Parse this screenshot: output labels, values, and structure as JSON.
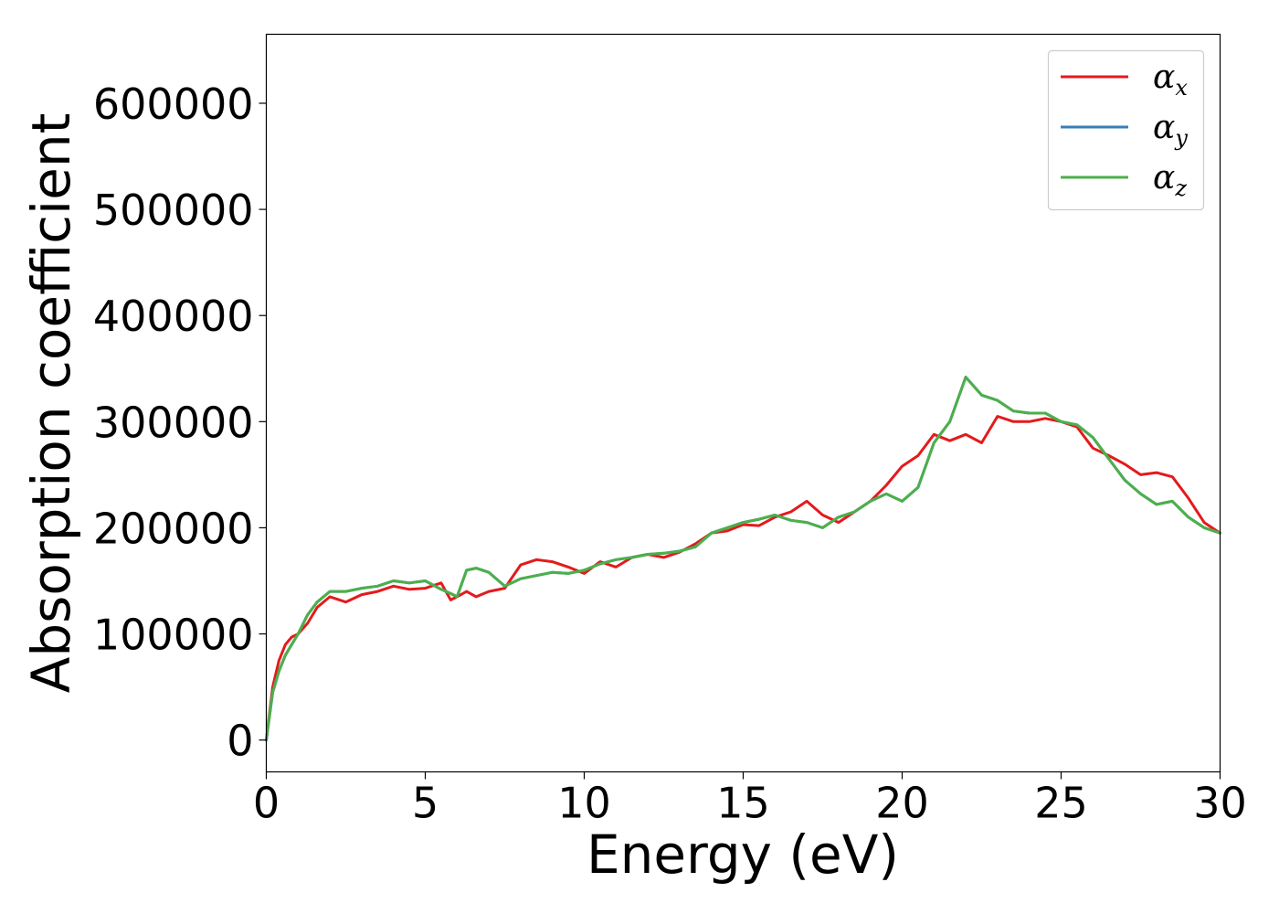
{
  "chart_data": {
    "type": "line",
    "xlabel": "Energy (eV)",
    "ylabel": "Absorption coefficient",
    "xlim": [
      0,
      30
    ],
    "ylim": [
      -30000,
      665000
    ],
    "xticks": [
      0,
      5,
      10,
      15,
      20,
      25,
      30
    ],
    "xtick_labels": [
      "0",
      "5",
      "10",
      "15",
      "20",
      "25",
      "30"
    ],
    "yticks": [
      0,
      100000,
      200000,
      300000,
      400000,
      500000,
      600000
    ],
    "ytick_labels": [
      "0",
      "100000",
      "200000",
      "300000",
      "400000",
      "500000",
      "600000"
    ],
    "grid": false,
    "legend_position": "top-right",
    "series": [
      {
        "name": "α_x",
        "label_base": "α",
        "label_sub": "x",
        "color": "#e41a1c",
        "x": [
          0,
          0.2,
          0.4,
          0.6,
          0.8,
          1.0,
          1.3,
          1.6,
          2.0,
          2.5,
          3.0,
          3.5,
          4.0,
          4.5,
          5.0,
          5.5,
          5.8,
          6.0,
          6.3,
          6.6,
          7.0,
          7.5,
          8.0,
          8.5,
          9.0,
          9.5,
          10.0,
          10.5,
          11.0,
          11.5,
          12.0,
          12.5,
          13.0,
          13.5,
          14.0,
          14.5,
          15.0,
          15.5,
          16.0,
          16.5,
          17.0,
          17.5,
          18.0,
          18.5,
          19.0,
          19.5,
          20.0,
          20.5,
          21.0,
          21.5,
          22.0,
          22.5,
          23.0,
          23.5,
          24.0,
          24.5,
          25.0,
          25.5,
          26.0,
          26.5,
          27.0,
          27.5,
          28.0,
          28.5,
          29.0,
          29.5,
          30.0
        ],
        "y": [
          0,
          50000,
          75000,
          90000,
          97000,
          100000,
          110000,
          125000,
          135000,
          130000,
          137000,
          140000,
          145000,
          142000,
          143000,
          148000,
          132000,
          135000,
          140000,
          135000,
          140000,
          143000,
          165000,
          170000,
          168000,
          163000,
          157000,
          168000,
          163000,
          172000,
          175000,
          172000,
          177000,
          185000,
          195000,
          197000,
          203000,
          202000,
          210000,
          215000,
          225000,
          212000,
          205000,
          215000,
          225000,
          240000,
          258000,
          268000,
          288000,
          282000,
          288000,
          280000,
          305000,
          300000,
          300000,
          303000,
          300000,
          295000,
          275000,
          268000,
          260000,
          250000,
          252000,
          248000,
          228000,
          205000,
          195000
        ]
      },
      {
        "name": "α_y",
        "label_base": "α",
        "label_sub": "y",
        "color": "#377eb8",
        "x": [
          0,
          0.2,
          0.4,
          0.6,
          0.8,
          1.0,
          1.3,
          1.6,
          2.0,
          2.5,
          3.0,
          3.5,
          4.0,
          4.5,
          5.0,
          5.5,
          5.8,
          6.0,
          6.3,
          6.6,
          7.0,
          7.5,
          8.0,
          8.5,
          9.0,
          9.5,
          10.0,
          10.5,
          11.0,
          11.5,
          12.0,
          12.5,
          13.0,
          13.5,
          14.0,
          14.5,
          15.0,
          15.5,
          16.0,
          16.5,
          17.0,
          17.5,
          18.0,
          18.5,
          19.0,
          19.5,
          20.0,
          20.5,
          21.0,
          21.5,
          22.0,
          22.5,
          23.0,
          23.5,
          24.0,
          24.5,
          25.0,
          25.5,
          26.0,
          26.5,
          27.0,
          27.5,
          28.0,
          28.5,
          29.0,
          29.5,
          30.0
        ],
        "y": [
          0,
          45000,
          65000,
          80000,
          90000,
          100000,
          118000,
          130000,
          140000,
          140000,
          143000,
          145000,
          150000,
          148000,
          150000,
          142000,
          138000,
          135000,
          160000,
          162000,
          158000,
          145000,
          152000,
          155000,
          158000,
          157000,
          160000,
          166000,
          170000,
          172000,
          175000,
          176000,
          178000,
          182000,
          195000,
          200000,
          205000,
          208000,
          212000,
          207000,
          205000,
          200000,
          210000,
          215000,
          225000,
          232000,
          225000,
          238000,
          280000,
          300000,
          342000,
          325000,
          320000,
          310000,
          308000,
          308000,
          300000,
          297000,
          285000,
          265000,
          245000,
          232000,
          222000,
          225000,
          210000,
          200000,
          195000
        ]
      },
      {
        "name": "α_z",
        "label_base": "α",
        "label_sub": "z",
        "color": "#4daf4a",
        "x": [
          0,
          0.2,
          0.4,
          0.6,
          0.8,
          1.0,
          1.3,
          1.6,
          2.0,
          2.5,
          3.0,
          3.5,
          4.0,
          4.5,
          5.0,
          5.5,
          5.8,
          6.0,
          6.3,
          6.6,
          7.0,
          7.5,
          8.0,
          8.5,
          9.0,
          9.5,
          10.0,
          10.5,
          11.0,
          11.5,
          12.0,
          12.5,
          13.0,
          13.5,
          14.0,
          14.5,
          15.0,
          15.5,
          16.0,
          16.5,
          17.0,
          17.5,
          18.0,
          18.5,
          19.0,
          19.5,
          20.0,
          20.5,
          21.0,
          21.5,
          22.0,
          22.5,
          23.0,
          23.5,
          24.0,
          24.5,
          25.0,
          25.5,
          26.0,
          26.5,
          27.0,
          27.5,
          28.0,
          28.5,
          29.0,
          29.5,
          30.0
        ],
        "y": [
          0,
          45000,
          65000,
          80000,
          90000,
          100000,
          118000,
          130000,
          140000,
          140000,
          143000,
          145000,
          150000,
          148000,
          150000,
          142000,
          138000,
          135000,
          160000,
          162000,
          158000,
          145000,
          152000,
          155000,
          158000,
          157000,
          160000,
          166000,
          170000,
          172000,
          175000,
          176000,
          178000,
          182000,
          195000,
          200000,
          205000,
          208000,
          212000,
          207000,
          205000,
          200000,
          210000,
          215000,
          225000,
          232000,
          225000,
          238000,
          280000,
          300000,
          342000,
          325000,
          320000,
          310000,
          308000,
          308000,
          300000,
          297000,
          285000,
          265000,
          245000,
          232000,
          222000,
          225000,
          210000,
          200000,
          195000
        ]
      }
    ]
  }
}
